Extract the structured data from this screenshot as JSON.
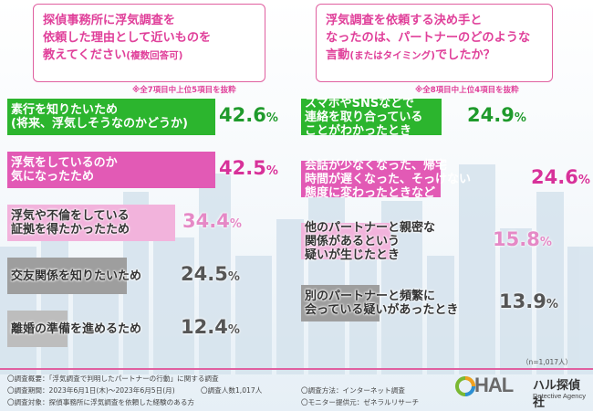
{
  "questions": {
    "left_line1": "探偵事務所に浮気調査を",
    "left_line2": "依頼した理由として近いものを",
    "left_line3": "教えてください",
    "left_note_inline": "(複数回答可)",
    "right_line1": "浮気調査を依頼する決め手と",
    "right_line2": "なったのは、パートナーのどのような",
    "right_line3": "言動",
    "right_note_inline": "(またはタイミング)",
    "right_line3_end": "でしたか？"
  },
  "notes": {
    "left": "※全7項目中上位5項目を抜粋",
    "right": "※全8項目中上位4項目を抜粋"
  },
  "chart_data": [
    {
      "type": "bar",
      "orientation": "horizontal",
      "categories": [
        [
          "素行を知りたいため",
          "(将来、浮気しそうなのかどうか)"
        ],
        [
          "浮気をしているのか",
          "気になったため"
        ],
        [
          "浮気や不倫をしている",
          "証拠を得たかったため"
        ],
        [
          "交友関係を知りたいため"
        ],
        [
          "離婚の準備を進めるため"
        ]
      ],
      "values": [
        "42.6",
        "42.5",
        "34.4",
        "24.5",
        "12.4"
      ],
      "unit": "%",
      "colors": [
        "#2cb52e",
        "#e25ab5",
        "#f2b3dc",
        "#9e9e9e",
        "#bdbdbd"
      ]
    },
    {
      "type": "bar",
      "orientation": "horizontal",
      "categories": [
        [
          "スマホやSNSなどで",
          "連絡を取り合っている",
          "ことがわかったとき"
        ],
        [
          "会話が少なくなった、帰宅",
          "時間が遅くなった、そっけない",
          "態度に変わったときなど"
        ],
        [
          "他のパートナーと親密な",
          "関係があるという",
          "疑いが生じたとき"
        ],
        [
          "別のパートナーと頻繁に",
          "会っている疑いがあったとき"
        ]
      ],
      "values": [
        "24.9",
        "24.6",
        "15.8",
        "13.9"
      ],
      "unit": "%",
      "colors": [
        "#2cb52e",
        "#e25ab5",
        "#f2b3dc",
        "#9e9e9e"
      ]
    }
  ],
  "sample_note": "（n=1,017人）",
  "footer": {
    "line1": "〇調査概要：「浮気調査で判明したパートナーの行動」に関する調査",
    "line2a": "〇調査期間：2023年6月1日(木)～2023年6月5日(月)",
    "line2b": "〇調査人数1,017人",
    "line2c": "〇調査方法：インターネット調査",
    "line3a": "〇調査対象：探偵事務所に浮気調査を依頼した経験のある方",
    "line3b": "〇モニター提供元：ゼネラルリサーチ"
  },
  "logo": {
    "mark": "HAL",
    "name": "ハル探偵社",
    "sub": "Detective Agency"
  }
}
